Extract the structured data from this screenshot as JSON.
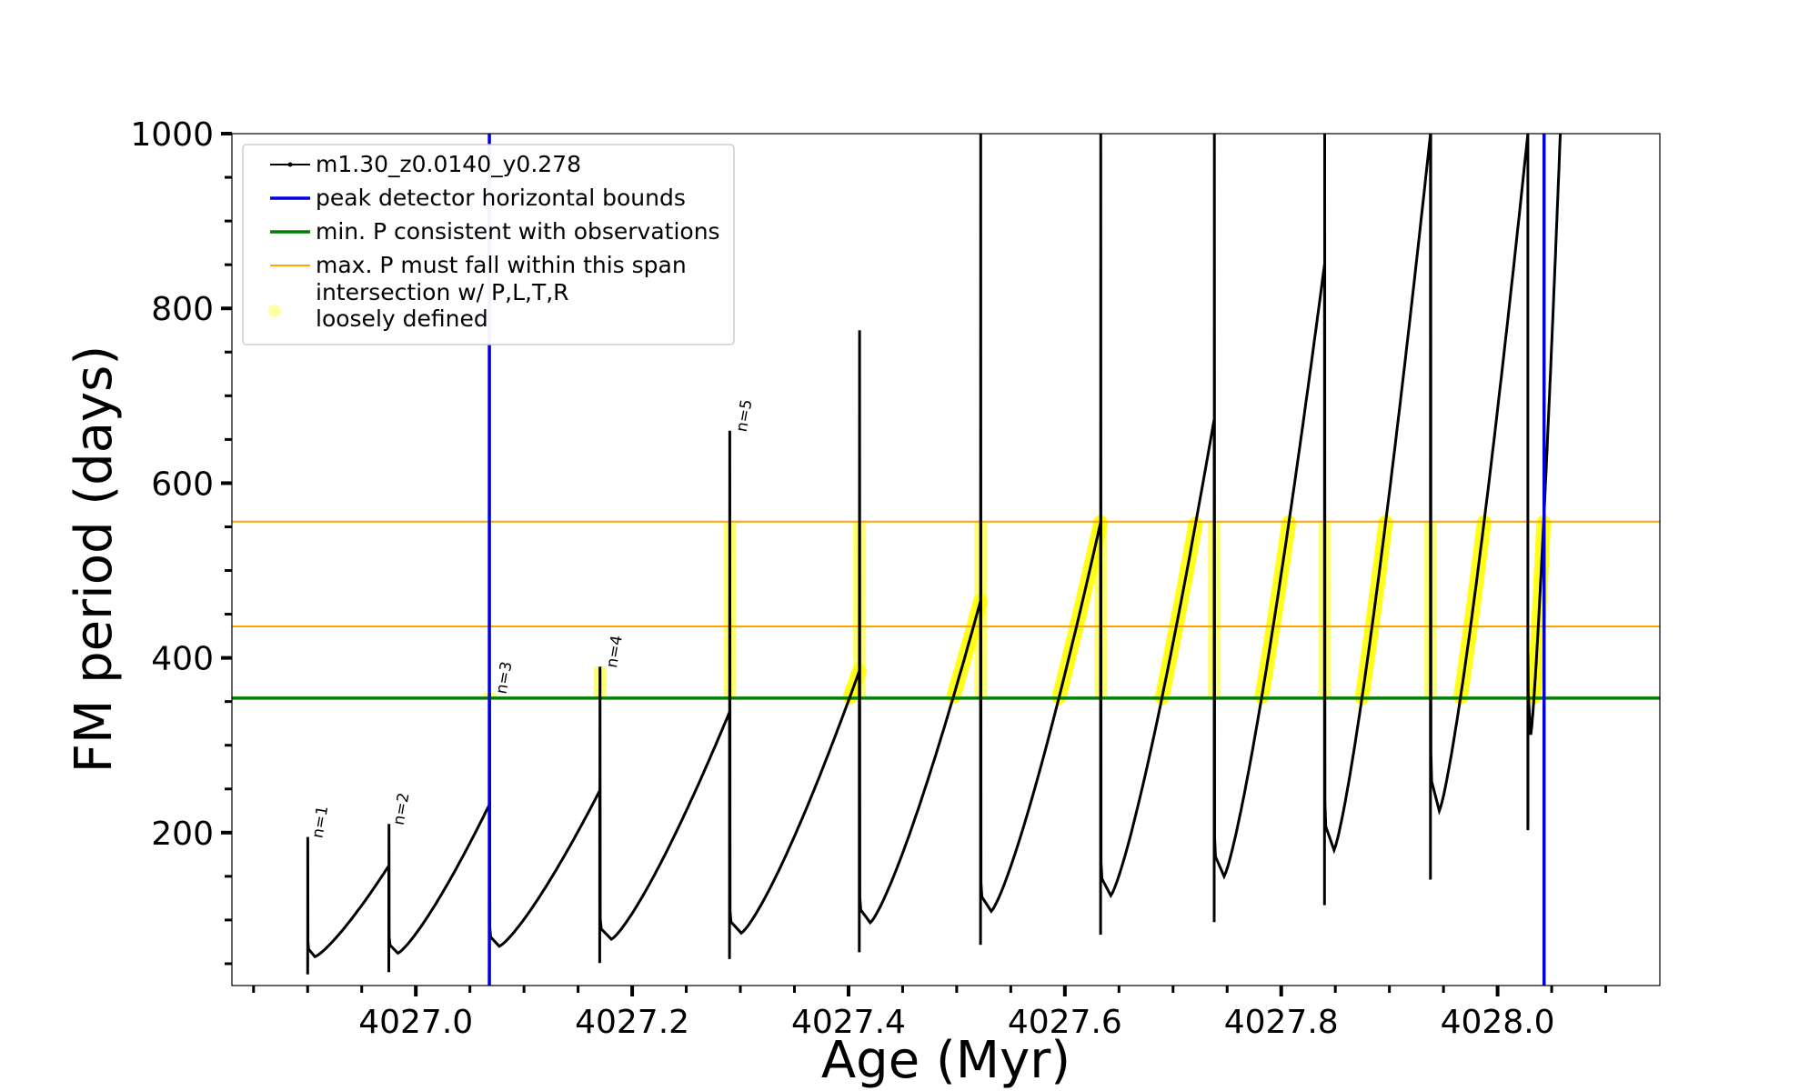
{
  "chart_data": {
    "type": "line",
    "xlabel": "Age (Myr)",
    "ylabel": "FM period (days)",
    "xlim": [
      4026.83,
      4028.15
    ],
    "ylim": [
      25,
      1000
    ],
    "x_ticks": [
      4027.0,
      4027.2,
      4027.4,
      4027.6,
      4027.8,
      4028.0
    ],
    "x_tick_labels": [
      "4027.0",
      "4027.2",
      "4027.4",
      "4027.6",
      "4027.8",
      "4028.0"
    ],
    "y_ticks": [
      200,
      400,
      600,
      800,
      1000
    ],
    "y_tick_labels": [
      "200",
      "400",
      "600",
      "800",
      "1000"
    ],
    "grid": false,
    "legend_position": "top-left",
    "colors": {
      "track": "#000000",
      "bounds": "#0000dd",
      "min_p": "#007f00",
      "max_p": "#ffa500",
      "intersection": "#ffff00"
    },
    "series": [
      {
        "name": "m1.30_z0.0140_y0.278",
        "color": "#000000",
        "cycles": [
          {
            "x0": 4026.9,
            "x1": 4026.975,
            "spike": 195,
            "dip": 58,
            "peak": 162
          },
          {
            "x0": 4026.975,
            "x1": 4027.068,
            "spike": 210,
            "dip": 62,
            "peak": 232
          },
          {
            "x0": 4027.068,
            "x1": 4027.17,
            "spike": 360,
            "dip": 70,
            "peak": 248
          },
          {
            "x0": 4027.17,
            "x1": 4027.29,
            "spike": 390,
            "dip": 78,
            "peak": 338
          },
          {
            "x0": 4027.29,
            "x1": 4027.41,
            "spike": 660,
            "dip": 85,
            "peak": 385
          },
          {
            "x0": 4027.41,
            "x1": 4027.522,
            "spike": 775,
            "dip": 97,
            "peak": 465
          },
          {
            "x0": 4027.522,
            "x1": 4027.633,
            "spike": 1000,
            "dip": 110,
            "peak": 555
          },
          {
            "x0": 4027.633,
            "x1": 4027.738,
            "spike": 1000,
            "dip": 128,
            "peak": 673
          },
          {
            "x0": 4027.738,
            "x1": 4027.84,
            "spike": 1000,
            "dip": 150,
            "peak": 850
          },
          {
            "x0": 4027.84,
            "x1": 4027.938,
            "spike": 1000,
            "dip": 180,
            "peak": 1000
          },
          {
            "x0": 4027.938,
            "x1": 4028.028,
            "spike": 1000,
            "dip": 225,
            "peak": 1000
          },
          {
            "x0": 4028.028,
            "x1": 4028.058,
            "spike": 210,
            "dip": 312,
            "peak": 1000
          }
        ]
      },
      {
        "name": "peak detector horizontal bounds",
        "color": "#0000dd",
        "x_values": [
          4027.068,
          4028.043
        ]
      },
      {
        "name": "min. P consistent with observations",
        "color": "#007f00",
        "y_value": 354
      },
      {
        "name": "max. P must fall within this span",
        "color": "#ffa500",
        "y_values": [
          436,
          556
        ]
      },
      {
        "name": "intersection w/ P,L,T,R\nloosely defined",
        "color": "#ffff00"
      }
    ],
    "annotations": [
      {
        "text": "n=1",
        "x": 4026.905,
        "y": 195
      },
      {
        "text": "n=2",
        "x": 4026.98,
        "y": 210
      },
      {
        "text": "n=3",
        "x": 4027.075,
        "y": 360
      },
      {
        "text": "n=4",
        "x": 4027.177,
        "y": 390
      },
      {
        "text": "n=5",
        "x": 4027.297,
        "y": 660
      }
    ]
  }
}
